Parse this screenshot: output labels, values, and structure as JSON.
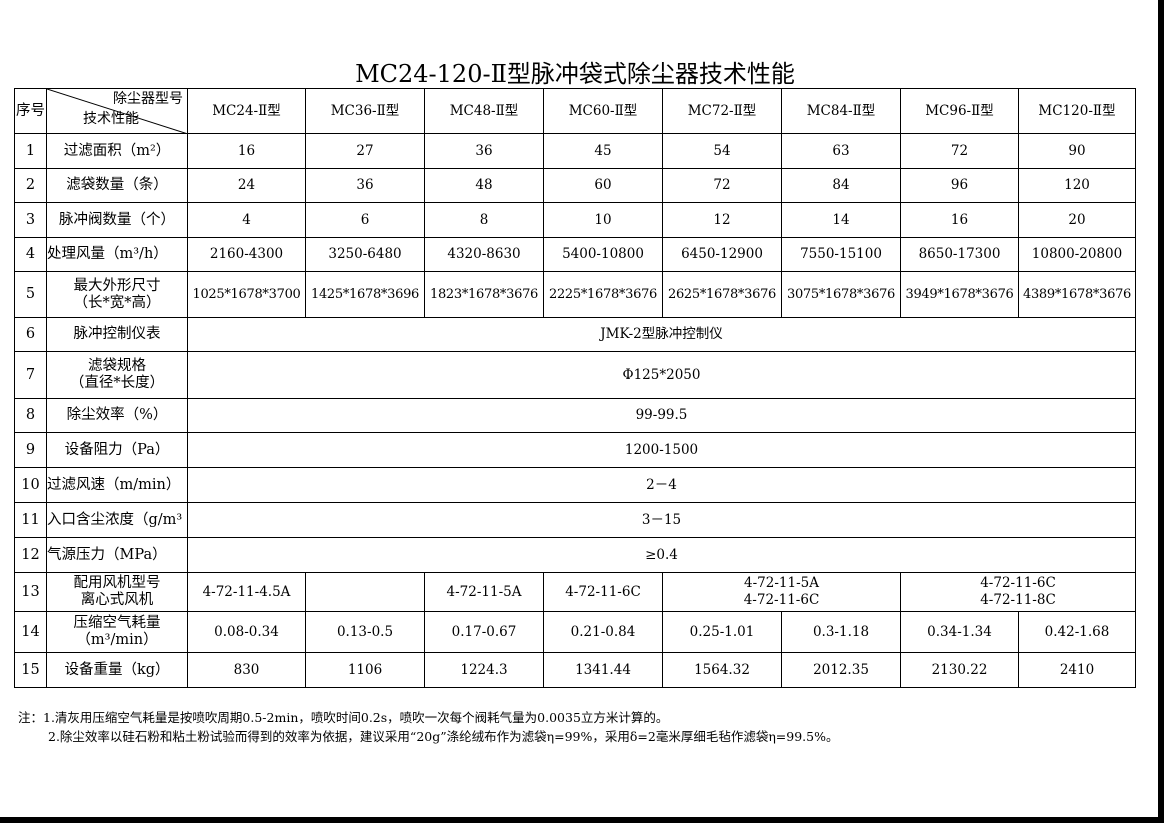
{
  "title": "MC24-120-Ⅱ型脉冲袋式除尘器技术性能",
  "header": {
    "seq": "序号",
    "corner_top": "除尘器型号",
    "corner_bottom": "技术性能",
    "models": [
      "MC24-Ⅱ型",
      "MC36-Ⅱ型",
      "MC48-Ⅱ型",
      "MC60-Ⅱ型",
      "MC72-Ⅱ型",
      "MC84-Ⅱ型",
      "MC96-Ⅱ型",
      "MC120-Ⅱ型"
    ]
  },
  "rows": [
    {
      "no": "1",
      "label": "过滤面积（m²）",
      "values": [
        "16",
        "27",
        "36",
        "45",
        "54",
        "63",
        "72",
        "90"
      ]
    },
    {
      "no": "2",
      "label": "滤袋数量（条）",
      "values": [
        "24",
        "36",
        "48",
        "60",
        "72",
        "84",
        "96",
        "120"
      ]
    },
    {
      "no": "3",
      "label": "脉冲阀数量（个）",
      "values": [
        "4",
        "6",
        "8",
        "10",
        "12",
        "14",
        "16",
        "20"
      ]
    },
    {
      "no": "4",
      "label": "处理风量（m³/h）",
      "values": [
        "2160-4300",
        "3250-6480",
        "4320-8630",
        "5400-10800",
        "6450-12900",
        "7550-15100",
        "8650-17300",
        "10800-20800"
      ]
    },
    {
      "no": "5",
      "label": "最大外形尺寸",
      "label2": "（长*宽*高）",
      "values": [
        "1025*1678*3700",
        "1425*1678*3696",
        "1823*1678*3676",
        "2225*1678*3676",
        "2625*1678*3676",
        "3075*1678*3676",
        "3949*1678*3676",
        "4389*1678*3676"
      ]
    },
    {
      "no": "6",
      "label": "脉冲控制仪表",
      "value": "JMK-2型脉冲控制仪"
    },
    {
      "no": "7",
      "label": "滤袋规格",
      "label2": "（直径*长度）",
      "value": "Φ125*2050"
    },
    {
      "no": "8",
      "label": "除尘效率（%）",
      "value": "99-99.5"
    },
    {
      "no": "9",
      "label": "设备阻力（Pa）",
      "value": "1200-1500"
    },
    {
      "no": "10",
      "label": "过滤风速（m/min）",
      "value": "2－4"
    },
    {
      "no": "11",
      "label": "入口含尘浓度（g/m³",
      "value": "3－15"
    },
    {
      "no": "12",
      "label": "气源压力（MPa）",
      "value": "≥0.4"
    },
    {
      "no": "13",
      "label": "配用风机型号",
      "label2": "离心式风机",
      "values": [
        "4-72-11-4.5A",
        "",
        "4-72-11-5A",
        "4-72-11-6C"
      ],
      "merged": [
        [
          "4-72-11-5A",
          "4-72-11-6C"
        ],
        [
          "4-72-11-6C",
          "4-72-11-8C"
        ]
      ]
    },
    {
      "no": "14",
      "label": "压缩空气耗量",
      "label2": "（m³/min）",
      "values": [
        "0.08-0.34",
        "0.13-0.5",
        "0.17-0.67",
        "0.21-0.84",
        "0.25-1.01",
        "0.3-1.18",
        "0.34-1.34",
        "0.42-1.68"
      ]
    },
    {
      "no": "15",
      "label": "设备重量（kg）",
      "values": [
        "830",
        "1106",
        "1224.3",
        "1341.44",
        "1564.32",
        "2012.35",
        "2130.22",
        "2410"
      ]
    }
  ],
  "notes": [
    "注：1.清灰用压缩空气耗量是按喷吹周期0.5-2min，喷吹时间0.2s，喷吹一次每个阀耗气量为0.0035立方米计算的。",
    "2.除尘效率以硅石粉和粘土粉试验而得到的效率为依据，建议采用“20g”涤纶绒布作为滤袋η=99%，采用δ=2毫米厚细毛毡作滤袋η=99.5%。"
  ]
}
